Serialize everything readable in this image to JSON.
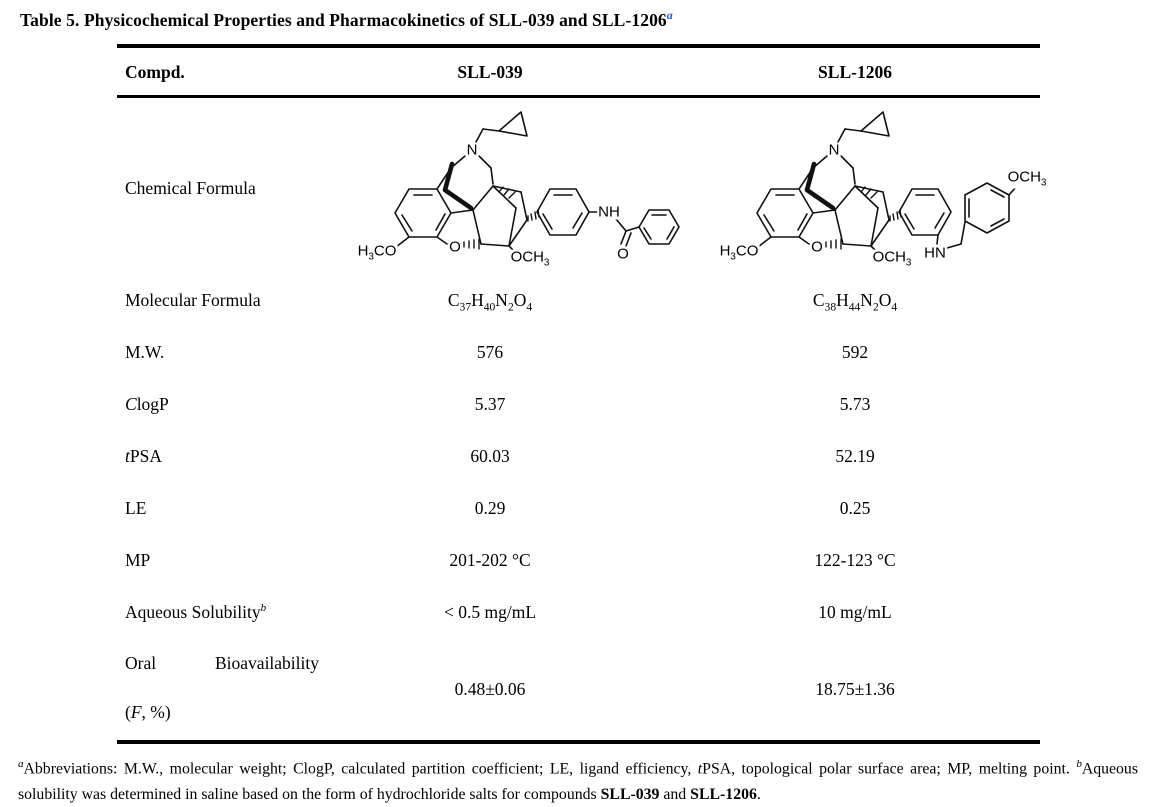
{
  "title": {
    "text": "Table 5. Physicochemical Properties and Pharmacokinetics of SLL-039 and SLL-1206",
    "sup": "a"
  },
  "header": {
    "compound_col": "Compd.",
    "col1": "SLL-039",
    "col2": "SLL-1206"
  },
  "chemical_formula_row": {
    "label": "Chemical Formula"
  },
  "structures": {
    "sll039": {
      "labels": {
        "n": "N",
        "h3co": "H3CO",
        "furan_o": "O",
        "och3": "OCH3",
        "nh": "NH",
        "carbonyl_o": "O"
      }
    },
    "sll1206": {
      "labels": {
        "n": "N",
        "h3co": "H3CO",
        "furan_o": "O",
        "och3": "OCH3",
        "hn": "HN",
        "och3_benzyl": "OCH3"
      }
    }
  },
  "rows": [
    {
      "label": "Molecular Formula",
      "sll039": "C37H40N2O4",
      "sll1206": "C38H44N2O4"
    },
    {
      "label": "M.W.",
      "sll039": "576",
      "sll1206": "592"
    },
    {
      "label_italic": "C",
      "label": "logP",
      "sll039": "5.37",
      "sll1206": "5.73"
    },
    {
      "label_italic": "t",
      "label": "PSA",
      "sll039": "60.03",
      "sll1206": "52.19"
    },
    {
      "label": "LE",
      "sll039": "0.29",
      "sll1206": "0.25"
    },
    {
      "label": "MP",
      "sll039": "201-202 °C",
      "sll1206": "122-123 °C"
    },
    {
      "label": "Aqueous Solubility",
      "label_sup": "b",
      "sll039": "< 0.5 mg/mL",
      "sll1206": "10 mg/mL"
    }
  ],
  "oral_row": {
    "word1": "Oral",
    "word2": "Bioavailability",
    "line2_pre": "(",
    "line2_italic": "F",
    "line2_rest": ", %)",
    "sll039": "0.48±0.06",
    "sll1206": "18.75±1.36"
  },
  "footnote": {
    "sup_a": "a",
    "text_1": "Abbreviations: M.W., molecular weight; ClogP, calculated partition coefficient; LE, ligand efficiency, ",
    "italic_t": "t",
    "text_2": "PSA, topological polar surface area; MP, melting point. ",
    "sup_b": "b",
    "text_3": "Aqueous solubility was determined in saline based on the form of hydrochloride salts for compounds ",
    "bold_1": "SLL-039",
    "text_4": " and ",
    "bold_2": "SLL-1206",
    "text_5": "."
  },
  "colors": {
    "background": "#ffffff",
    "text": "#000000",
    "title_superscript_blue": "#2b5ac6"
  }
}
